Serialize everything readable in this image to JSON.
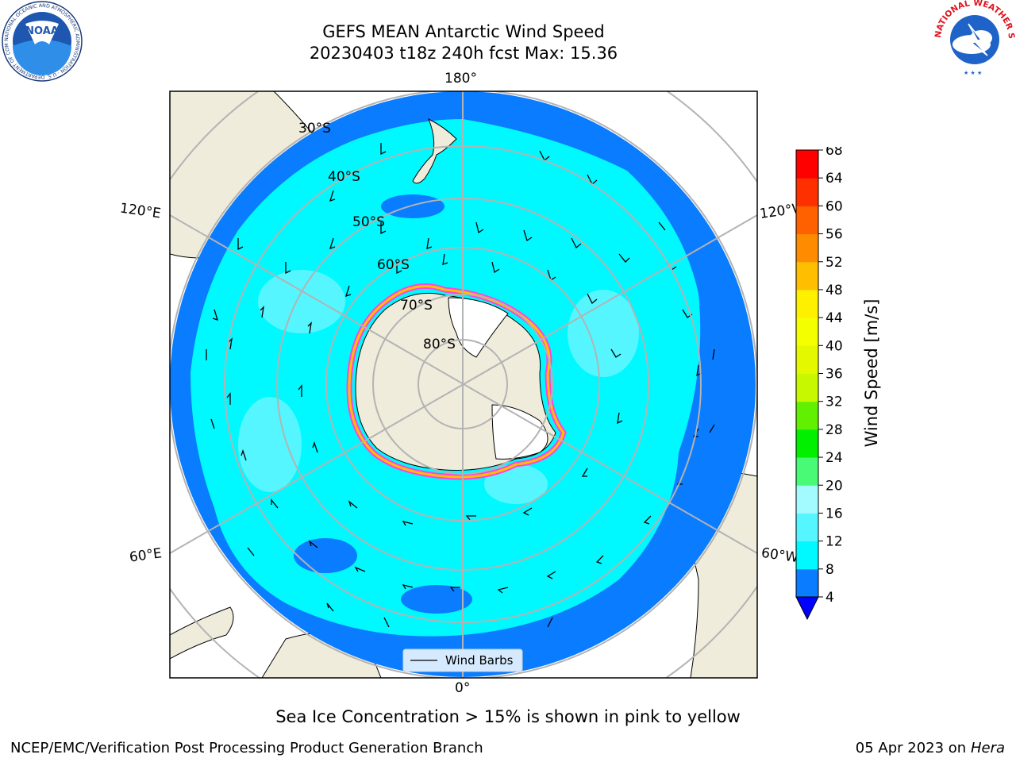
{
  "header": {
    "title_line1": "GEFS MEAN Antarctic Wind Speed",
    "title_line2": "20230403 t18z 240h fcst   Max: 15.36"
  },
  "logos": {
    "noaa_ring": "NATIONAL OCEANIC AND ATMOSPHERIC ADMINISTRATION · U.S. DEPARTMENT OF COMMERCE",
    "noaa_word": "NOAA",
    "nws_ring": "NATIONAL WEATHER SERVICE"
  },
  "map": {
    "longitude_labels": {
      "top": "180°",
      "bottom": "0°",
      "upper_left": "120°E",
      "lower_left": "60°E",
      "upper_right": "120°W",
      "lower_right": "60°W"
    },
    "latitude_labels": [
      "30°S",
      "40°S",
      "50°S",
      "60°S",
      "70°S",
      "80°S"
    ],
    "legend_label": "Wind Barbs",
    "colors": {
      "land": "#efecdc",
      "ocean_4_8": "#0a7cff",
      "ocean_8_12": "#00f8ff",
      "ocean_12_16": "#55f6ff",
      "grid": "#b3b3b3",
      "ice_edge": "#ff44dd"
    }
  },
  "colorbar": {
    "label": "Wind Speed [m/s]",
    "ticks": [
      "4",
      "8",
      "12",
      "16",
      "20",
      "24",
      "28",
      "32",
      "36",
      "40",
      "44",
      "48",
      "52",
      "56",
      "60",
      "64",
      "68"
    ],
    "colors": [
      "#0a7cff",
      "#00f8ff",
      "#55f6ff",
      "#a4fbff",
      "#49fa77",
      "#00f000",
      "#60f000",
      "#c8f800",
      "#e4f800",
      "#f4ff00",
      "#fff000",
      "#ffbe00",
      "#ff8c00",
      "#ff6000",
      "#ff3000",
      "#ff0000"
    ],
    "extend_min_color": "#0000ff"
  },
  "notes": {
    "sea_ice": "Sea Ice Concentration > 15% is shown in pink to yellow",
    "producer": "NCEP/EMC/Verification Post Processing Product Generation Branch",
    "date": "05 Apr 2023 on ",
    "machine": "Hera"
  }
}
